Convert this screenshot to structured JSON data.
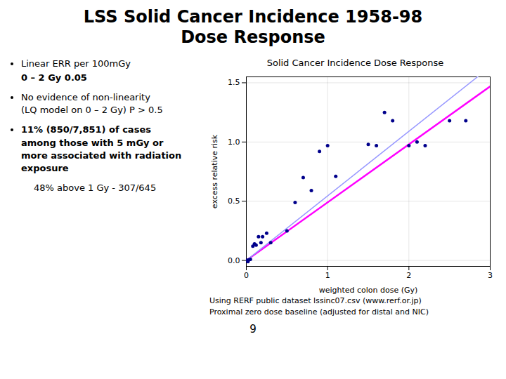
{
  "chart_data": {
    "type": "scatter",
    "heading": [
      "LSS Solid Cancer Incidence 1958-98",
      "Dose Response"
    ],
    "notes": [
      "Linear ERR per 100mGy",
      "0 – 2 Gy    0.05",
      "No evidence of non-linearity\n(LQ model on 0 – 2 Gy) P > 0.5",
      "11% (850/7,851) of cases\namong those with 5 mGy or\nmore associated with radiation\nexposure",
      "48% above 1 Gy  -  307/645"
    ],
    "title": "Solid Cancer Incidence Dose Response",
    "xlabel": "weighted colon dose (Gy)",
    "ylabel": "excess relative risk",
    "x": [
      0.005,
      0.01,
      0.02,
      0.03,
      0.05,
      0.08,
      0.1,
      0.12,
      0.15,
      0.18,
      0.2,
      0.25,
      0.3,
      0.5,
      0.6,
      0.7,
      0.8,
      0.9,
      1.0,
      1.1,
      1.5,
      1.6,
      1.7,
      1.8,
      2.0,
      2.1,
      2.2,
      2.5,
      2.7
    ],
    "values": [
      0.0,
      0.0,
      -0.01,
      0.005,
      0.01,
      0.12,
      0.14,
      0.13,
      0.2,
      0.15,
      0.2,
      0.23,
      0.15,
      0.25,
      0.49,
      0.7,
      0.59,
      0.92,
      0.97,
      0.71,
      0.98,
      0.97,
      1.25,
      1.18,
      0.97,
      1.0,
      0.97,
      1.18,
      1.18
    ],
    "color": "#00008B",
    "lines": [
      {
        "slope": 0.49,
        "color": "#FF00FF"
      },
      {
        "slope": 0.545,
        "color": "#9999FF"
      }
    ],
    "line_x": [
      0,
      3.0
    ],
    "xlim": [
      0,
      3.0
    ],
    "ylim": [
      -0.05,
      1.55
    ],
    "xticks": [
      0,
      1,
      2,
      3
    ],
    "yticks": [
      {
        "value": 0,
        "label": "0.0"
      },
      {
        "value": 0.5,
        "label": "0.5"
      },
      {
        "value": 1.0,
        "label": "1.0"
      },
      {
        "value": 1.5,
        "label": "1.5"
      }
    ],
    "grid": true,
    "footnotes": [
      "Using RERF public dataset lssinc07.csv (www.rerf.or.jp)",
      "Proximal zero dose baseline (adjusted for distal and NIC)"
    ],
    "page_number": "9"
  }
}
